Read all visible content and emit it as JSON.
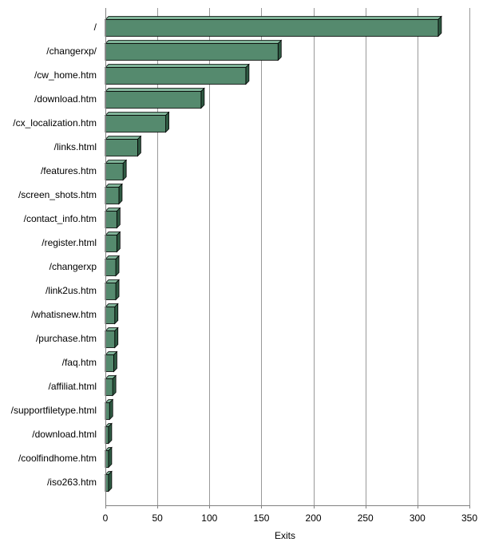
{
  "chart_data": {
    "type": "bar",
    "orientation": "horizontal",
    "style": "3d",
    "title": "",
    "xlabel": "Exits",
    "ylabel": "",
    "xlim": [
      0,
      350
    ],
    "xticks": [
      0,
      50,
      100,
      150,
      200,
      250,
      300,
      350
    ],
    "grid": true,
    "legend": "none",
    "bar_color": "#558a6e",
    "categories": [
      "/",
      "/changerxp/",
      "/cw_home.htm",
      "/download.htm",
      "/cx_localization.htm",
      "/links.html",
      "/features.htm",
      "/screen_shots.htm",
      "/contact_info.htm",
      "/register.html",
      "/changerxp",
      "/link2us.htm",
      "/whatisnew.htm",
      "/purchase.htm",
      "/faq.htm",
      "/affiliat.html",
      "/supportfiletype.html",
      "/download.html",
      "/coolfindhome.htm",
      "/iso263.htm"
    ],
    "values": [
      320,
      166,
      135,
      92,
      58,
      31,
      17,
      13,
      11,
      11,
      10,
      10,
      9,
      9,
      8,
      7,
      4,
      3,
      3,
      3
    ]
  }
}
